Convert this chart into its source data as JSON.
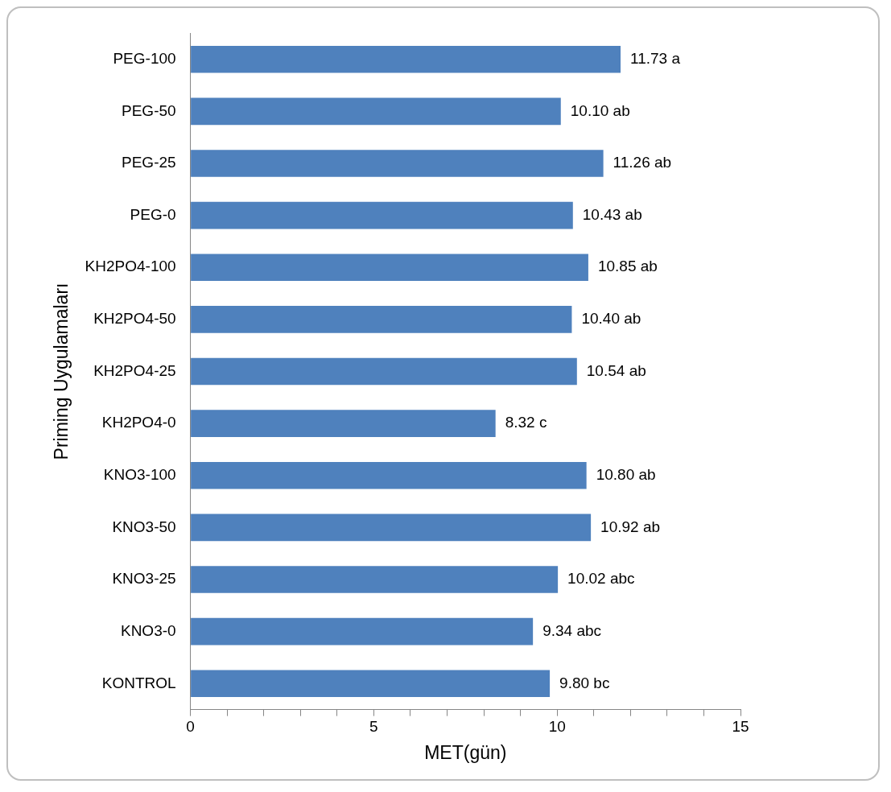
{
  "chart_data": {
    "type": "bar",
    "orientation": "horizontal",
    "xlabel": "MET(gün)",
    "ylabel": "Priming Uygulamaları",
    "categories": [
      "PEG-100",
      "PEG-50",
      "PEG-25",
      "PEG-0",
      "KH2PO4-100",
      "KH2PO4-50",
      "KH2PO4-25",
      "KH2PO4-0",
      "KNO3-100",
      "KNO3-50",
      "KNO3-25",
      "KNO3-0",
      "KONTROL"
    ],
    "values": [
      11.73,
      10.1,
      11.26,
      10.43,
      10.85,
      10.4,
      10.54,
      8.32,
      10.8,
      10.92,
      10.02,
      9.34,
      9.8
    ],
    "value_labels": [
      "11.73 a",
      "10.10 ab",
      "11.26 ab",
      "10.43 ab",
      "10.85 ab",
      "10.40 ab",
      "10.54 ab",
      "8.32 c",
      "10.80 ab",
      "10.92 ab",
      "10.02 abc",
      "9.34 abc",
      "9.80 bc"
    ],
    "color": "#4f81bd",
    "xlim": [
      0,
      15
    ],
    "xticks": [
      0,
      {
        "value": 1,
        "label": null
      },
      {
        "value": 2,
        "label": null
      },
      {
        "value": 3,
        "label": null
      },
      {
        "value": 4,
        "label": null
      },
      5,
      {
        "value": 6,
        "label": null
      },
      {
        "value": 7,
        "label": null
      },
      {
        "value": 8,
        "label": null
      },
      {
        "value": 9,
        "label": null
      },
      10,
      {
        "value": 11,
        "label": null
      },
      {
        "value": 12,
        "label": null
      },
      {
        "value": 13,
        "label": null
      },
      {
        "value": 14,
        "label": null
      },
      15
    ]
  }
}
